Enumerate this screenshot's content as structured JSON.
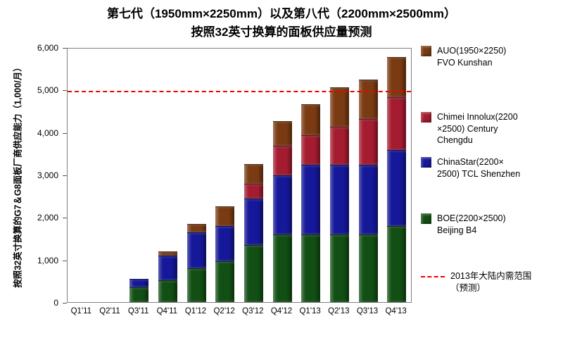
{
  "title": {
    "line1": "第七代（1950mm×2250mm）以及第八代（2200mm×2500mm）",
    "line2": "按照32英寸换算的面板供应量预测"
  },
  "chart_data": {
    "type": "bar",
    "stacked": true,
    "title": "第七代（1950mm×2250mm）以及第八代（2200mm×2500mm）按照32英寸换算的面板供应量预测",
    "ylabel": "按照32英寸换算的G7＆G8面板厂商供应能力（1,000/月）",
    "xlabel": "",
    "ylim": [
      0,
      6000
    ],
    "grid": false,
    "legend_position": "right",
    "categories": [
      "Q1'11",
      "Q2'11",
      "Q3'11",
      "Q4'11",
      "Q1'12",
      "Q2'12",
      "Q3'12",
      "Q4'12",
      "Q1'13",
      "Q2'13",
      "Q3'13",
      "Q4'13"
    ],
    "series": [
      {
        "name": "BOE(2200×2500) Beijing B4",
        "color": "#124F14",
        "values": [
          0,
          0,
          350,
          520,
          800,
          975,
          1350,
          1600,
          1600,
          1600,
          1600,
          1800
        ]
      },
      {
        "name": "ChinaStar(2200×2500) TCL Shenzhen",
        "color": "#151899",
        "values": [
          0,
          0,
          200,
          580,
          850,
          825,
          1100,
          1400,
          1650,
          1650,
          1650,
          1800
        ]
      },
      {
        "name": "Chimei Innolux(2200×2500) Century Chengdu",
        "color": "#A51C30",
        "values": [
          0,
          0,
          0,
          0,
          0,
          0,
          350,
          700,
          700,
          900,
          1080,
          1250
        ]
      },
      {
        "name": "AUO(1950×2250) FVO Kunshan",
        "color": "#7A3B13",
        "values": [
          0,
          0,
          0,
          100,
          200,
          470,
          470,
          580,
          730,
          930,
          940,
          950
        ]
      }
    ],
    "yticks": [
      {
        "value": 0,
        "label": "0"
      },
      {
        "value": 1000,
        "label": "1,000"
      },
      {
        "value": 2000,
        "label": "2,000"
      },
      {
        "value": 3000,
        "label": "3,000"
      },
      {
        "value": 4000,
        "label": "4,000"
      },
      {
        "value": 5000,
        "label": "5,000"
      },
      {
        "value": 6000,
        "label": "6,000"
      }
    ],
    "reference_line": {
      "value": 5000,
      "style": "dashed",
      "color": "#F40000",
      "label": "2013年大陆内需范围（预测）"
    }
  },
  "legend": {
    "items": [
      {
        "type": "box",
        "color": "#7A3B13",
        "label_lines": [
          "AUO(1950×2250)",
          "FVO Kunshan"
        ]
      },
      {
        "type": "box",
        "color": "#A51C30",
        "label_lines": [
          "Chimei Innolux(2200",
          "×2500) Century",
          "Chengdu"
        ]
      },
      {
        "type": "box",
        "color": "#151899",
        "label_lines": [
          "ChinaStar(2200×",
          "2500) TCL Shenzhen"
        ]
      },
      {
        "type": "box",
        "color": "#124F14",
        "label_lines": [
          "BOE(2200×2500)",
          "Beijing B4"
        ]
      },
      {
        "type": "dashed-line",
        "color": "#F40000",
        "label_lines": [
          "2013年大陆内需范围",
          "（预测）"
        ]
      }
    ]
  }
}
